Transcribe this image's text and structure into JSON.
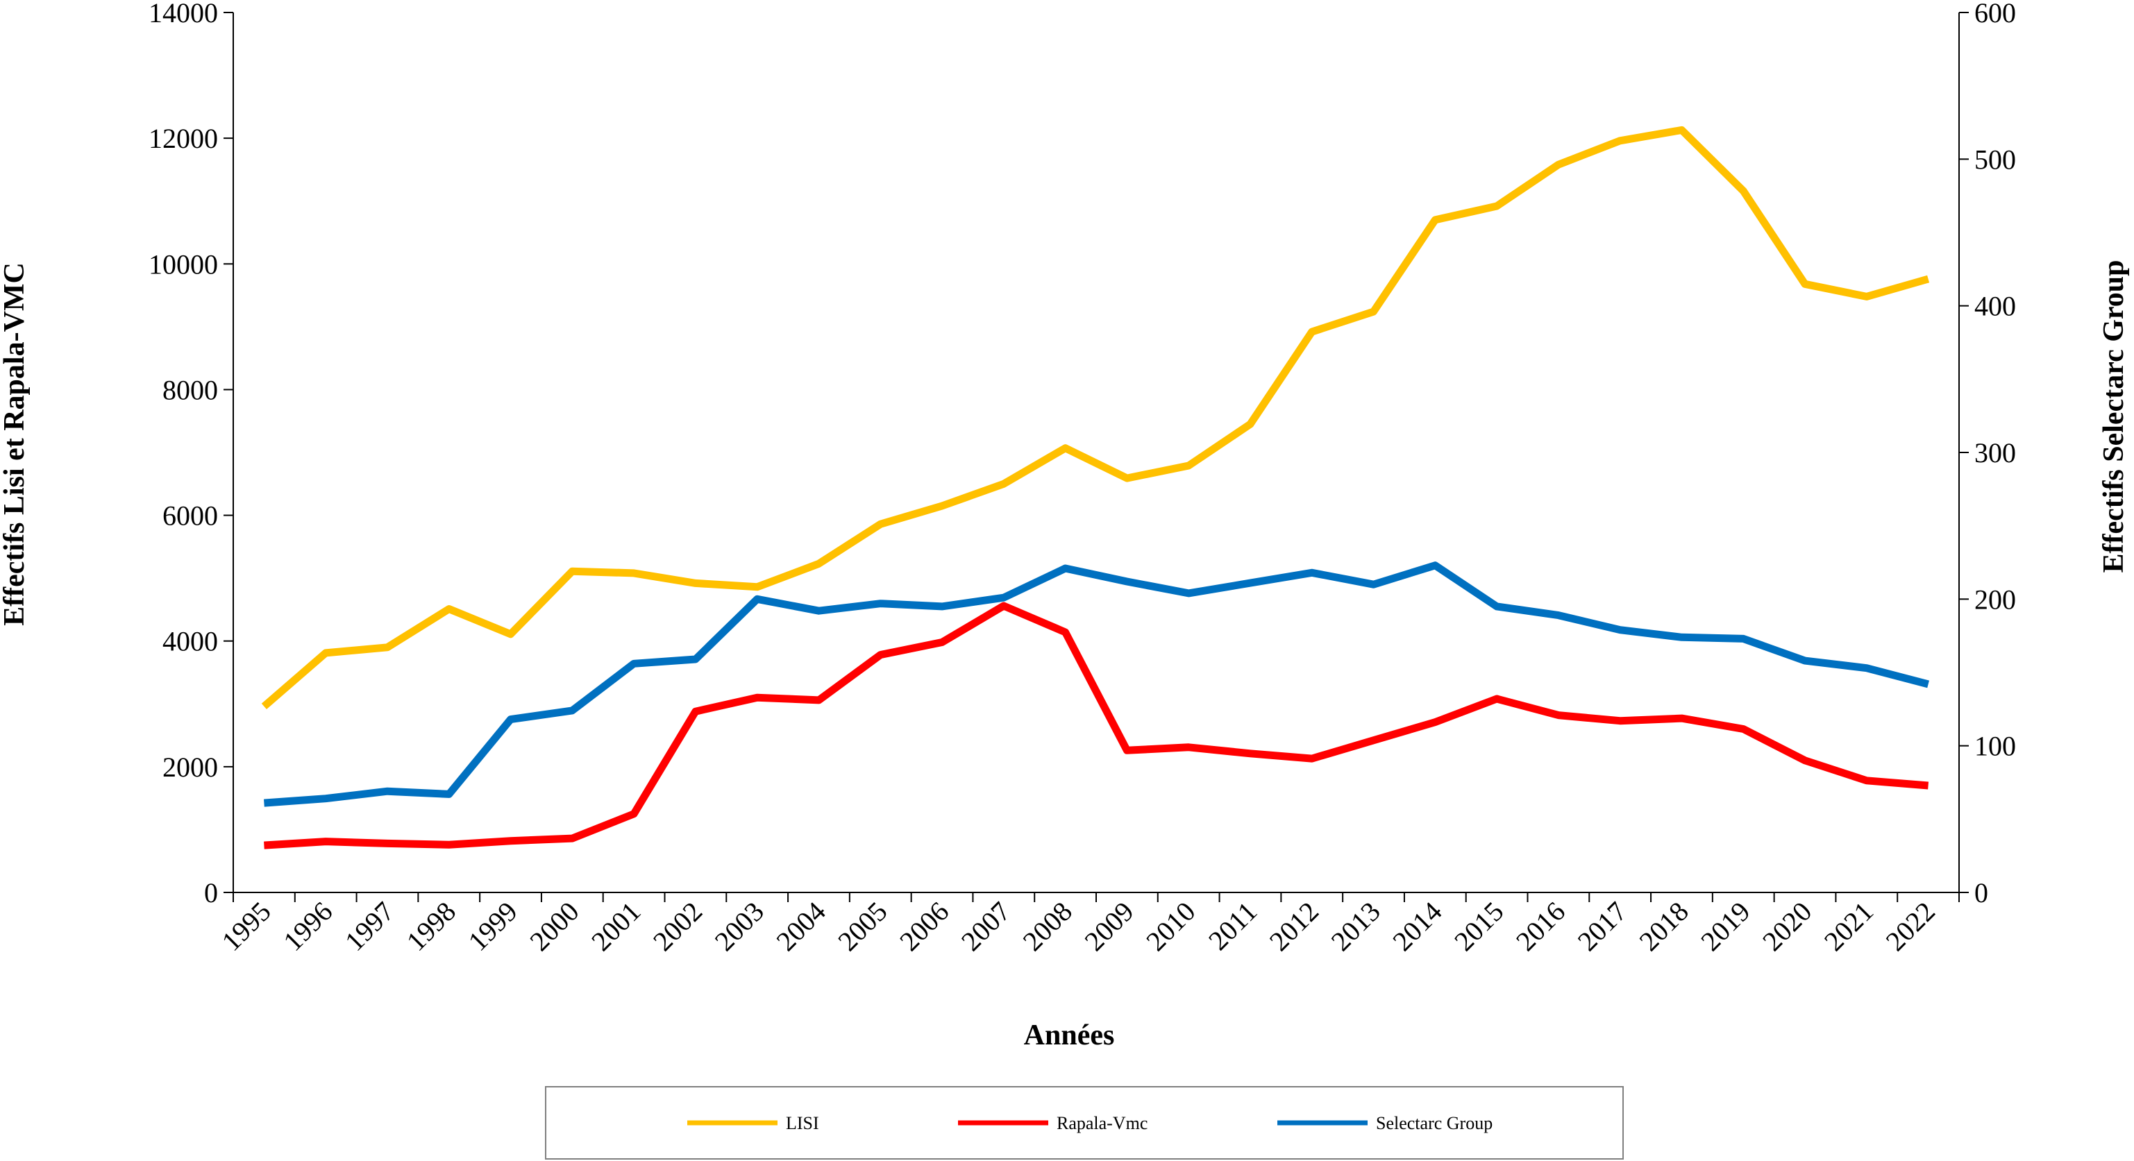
{
  "chart_data": {
    "type": "line",
    "title": "",
    "xlabel": "Années",
    "ylabel_left": "Effectifs Lisi et Rapala-VMC",
    "ylabel_right": "Effectifs Selectarc Group",
    "ylim_left": [
      0,
      14000
    ],
    "ylim_right": [
      0,
      600
    ],
    "yticks_left": [
      "0",
      "2000",
      "4000",
      "6000",
      "8000",
      "10000",
      "12000",
      "14000"
    ],
    "yticks_right": [
      "0",
      "100",
      "200",
      "300",
      "400",
      "500",
      "600"
    ],
    "grid": false,
    "legend_position": "bottom",
    "categories": [
      "1995",
      "1996",
      "1997",
      "1998",
      "1999",
      "2000",
      "2001",
      "2002",
      "2003",
      "2004",
      "2005",
      "2006",
      "2007",
      "2008",
      "2009",
      "2010",
      "2011",
      "2012",
      "2013",
      "2014",
      "2015",
      "2016",
      "2017",
      "2018",
      "2019",
      "2020",
      "2021",
      "2022"
    ],
    "series": [
      {
        "name": "LISI",
        "axis": "left",
        "color": "#FFC000",
        "values": [
          2960,
          3810,
          3900,
          4510,
          4110,
          5110,
          5080,
          4920,
          4860,
          5230,
          5860,
          6150,
          6500,
          7070,
          6590,
          6790,
          7450,
          8920,
          9240,
          10700,
          10920,
          11580,
          11960,
          12130,
          11160,
          9680,
          9480,
          9760
        ]
      },
      {
        "name": "Rapala-Vmc",
        "axis": "left",
        "color": "#FF0000",
        "values": [
          750,
          810,
          780,
          760,
          820,
          860,
          1250,
          2880,
          3100,
          3060,
          3780,
          3980,
          4560,
          4140,
          2260,
          2310,
          2210,
          2130,
          2420,
          2710,
          3080,
          2820,
          2730,
          2770,
          2600,
          2100,
          1780,
          1700
        ]
      },
      {
        "name": "Selectarc Group",
        "axis": "right",
        "color": "#0070C0",
        "values": [
          61,
          64,
          69,
          67,
          118,
          124,
          156,
          159,
          200,
          192,
          197,
          195,
          201,
          221,
          212,
          204,
          211,
          218,
          210,
          223,
          195,
          189,
          179,
          174,
          173,
          158,
          153,
          142
        ]
      }
    ]
  }
}
